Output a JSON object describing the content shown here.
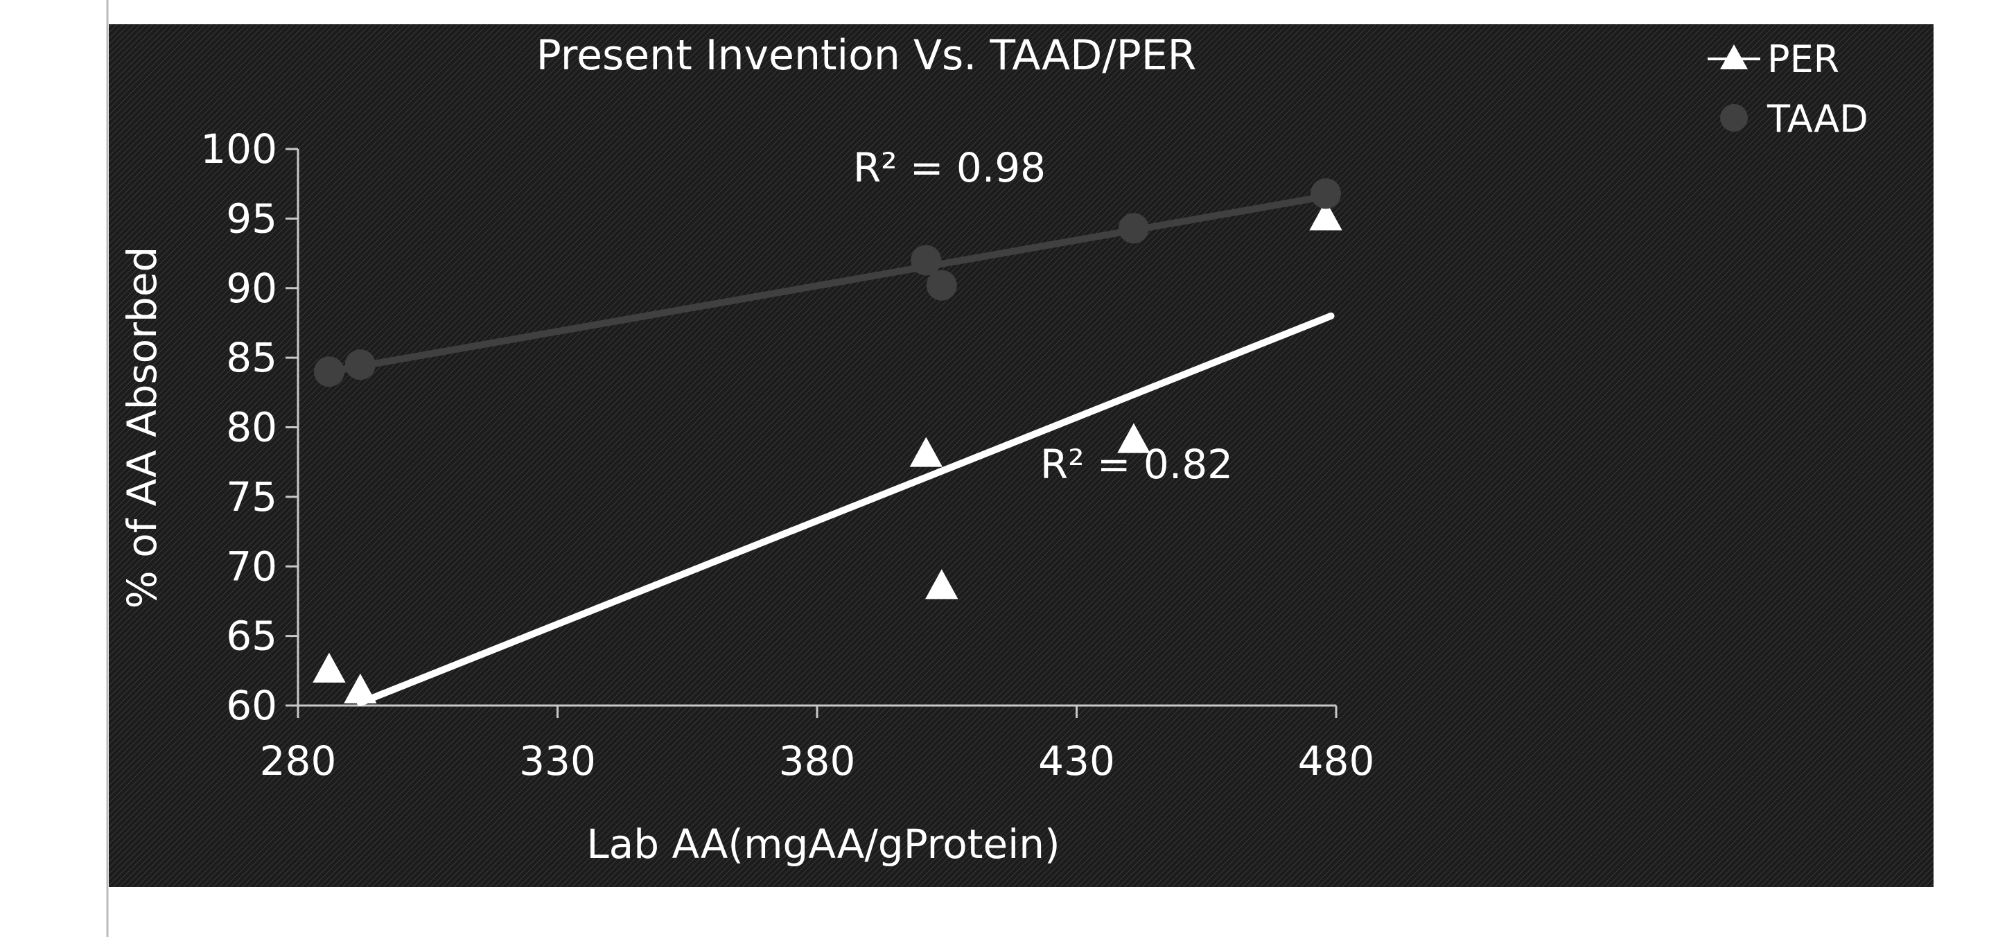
{
  "chart_data": {
    "type": "scatter",
    "title": "Present Invention Vs. TAAD/PER",
    "xlabel": "Lab AA(mgAA/gProtein)",
    "ylabel": "% of AA Absorbed",
    "xlim": [
      280,
      480
    ],
    "ylim": [
      60,
      100
    ],
    "x_ticks": [
      280,
      330,
      380,
      430,
      480
    ],
    "y_ticks": [
      60,
      65,
      70,
      75,
      80,
      85,
      90,
      95,
      100
    ],
    "legend_position": "top-right",
    "grid": false,
    "series": [
      {
        "name": "PER",
        "marker": "triangle",
        "color": "#ffffff",
        "points": [
          {
            "x": 286,
            "y": 62.5
          },
          {
            "x": 292,
            "y": 61.0
          },
          {
            "x": 401,
            "y": 78.0
          },
          {
            "x": 404,
            "y": 68.5
          },
          {
            "x": 441,
            "y": 79.0
          },
          {
            "x": 478,
            "y": 95.0
          }
        ],
        "trendline": {
          "x": [
            292,
            479
          ],
          "y": [
            60.2,
            88.0
          ],
          "r2_label": "R² = 0.82"
        }
      },
      {
        "name": "TAAD",
        "marker": "circle",
        "color": "#404040",
        "points": [
          {
            "x": 286,
            "y": 84.0
          },
          {
            "x": 292,
            "y": 84.5
          },
          {
            "x": 401,
            "y": 92.0
          },
          {
            "x": 404,
            "y": 90.2
          },
          {
            "x": 441,
            "y": 94.3
          },
          {
            "x": 478,
            "y": 96.8
          }
        ],
        "trendline": {
          "x": [
            286,
            478
          ],
          "y": [
            84.0,
            96.6
          ],
          "r2_label": "R² = 0.98"
        }
      }
    ]
  },
  "colors": {
    "background": "#1c1c1c",
    "axis": "#c8c8c8",
    "text": "#ffffff",
    "per": "#ffffff",
    "taad": "#404040"
  }
}
